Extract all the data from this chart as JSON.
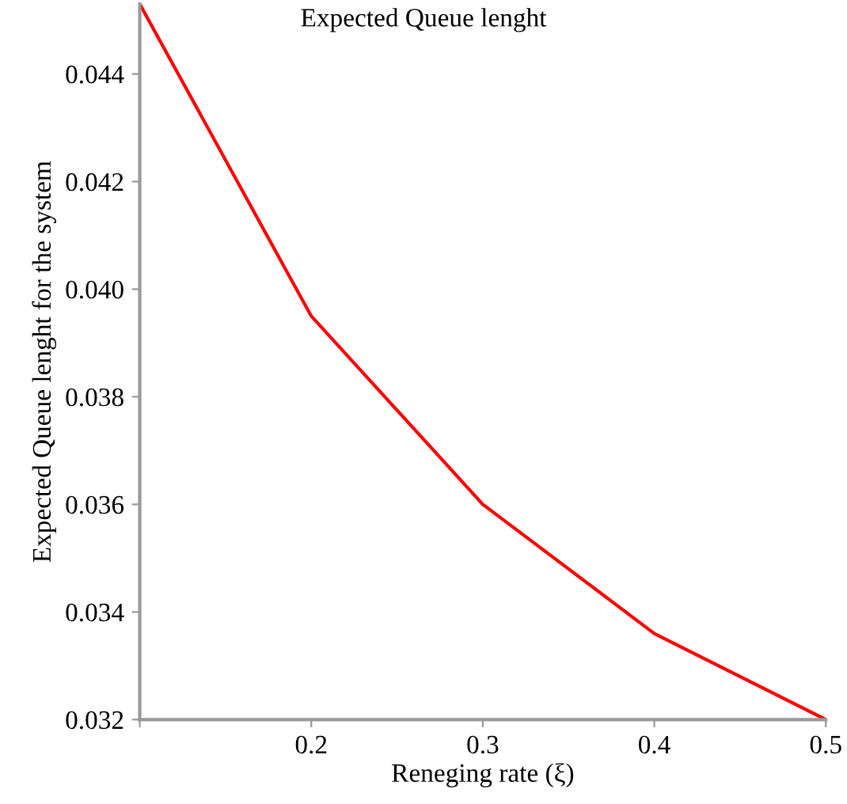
{
  "chart_data": {
    "type": "line",
    "title": "Expected Queue lenght",
    "xlabel": "Reneging rate (ξ)",
    "ylabel": "Expected Queue lenght for the system",
    "x": [
      0.1,
      0.2,
      0.3,
      0.4,
      0.5
    ],
    "series": [
      {
        "color": "#ff0000",
        "values": [
          0.0453,
          0.0395,
          0.036,
          0.0336,
          0.032
        ]
      }
    ],
    "xlim": [
      0.1,
      0.5
    ],
    "xticks": [
      {
        "value": 0.1,
        "label": null
      },
      0.2,
      0.3,
      0.4,
      0.5
    ],
    "ylim": [
      0.032,
      0.0453
    ],
    "yticks": [
      0.032,
      0.034,
      0.036,
      0.038,
      {
        "value": 0.04,
        "label": "0.040"
      },
      0.042,
      0.044
    ],
    "grid": false,
    "marker": "none",
    "line_style": "solid"
  }
}
